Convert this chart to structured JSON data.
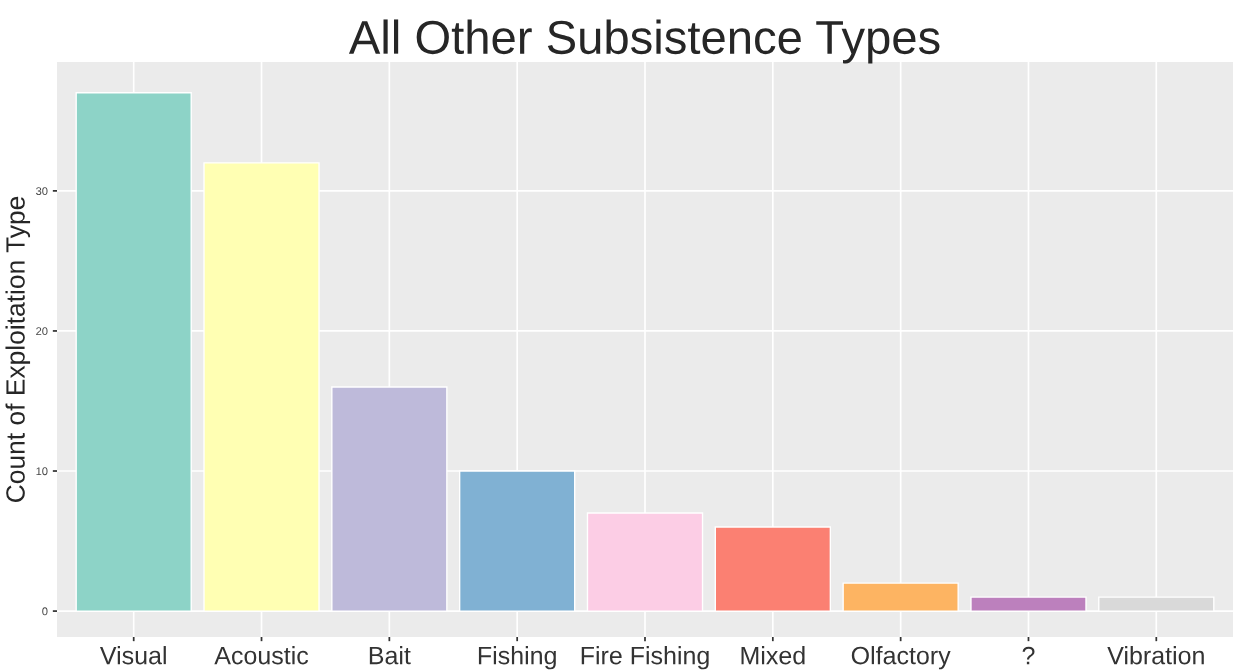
{
  "chart_data": {
    "type": "bar",
    "title": "All Other Subsistence Types",
    "ylabel": "Count of Exploitation Type",
    "categories": [
      "Visual",
      "Acoustic",
      "Bait",
      "Fishing",
      "Fire Fishing",
      "Mixed",
      "Olfactory",
      "?",
      "Vibration"
    ],
    "values": [
      37,
      32,
      16,
      10,
      7,
      6,
      2,
      1,
      1
    ],
    "colors": [
      "#8dd3c7",
      "#ffffb3",
      "#bebada",
      "#80b1d3",
      "#fccde5",
      "#fb8072",
      "#fdb462",
      "#bc80bd",
      "#d9d9d9"
    ],
    "ylim": [
      -1.85,
      39.2
    ],
    "yticks": [
      0,
      10,
      20,
      30
    ],
    "grid": true,
    "legend": false
  }
}
